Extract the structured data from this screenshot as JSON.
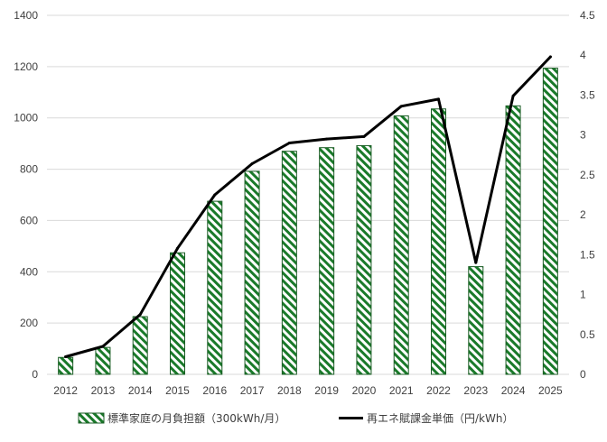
{
  "chart_data": {
    "type": "bar-line-combo",
    "categories": [
      "2012",
      "2013",
      "2014",
      "2015",
      "2016",
      "2017",
      "2018",
      "2019",
      "2020",
      "2021",
      "2022",
      "2023",
      "2024",
      "2025"
    ],
    "series": [
      {
        "name": "標準家庭の月負担額（300kWh/月）",
        "type": "bar",
        "axis": "left",
        "values": [
          66,
          105,
          225,
          474,
          675,
          792,
          870,
          884,
          892,
          1008,
          1035,
          420,
          1047,
          1194
        ]
      },
      {
        "name": "再エネ賦課金単価（円/kWh）",
        "type": "line",
        "axis": "right",
        "values": [
          0.22,
          0.35,
          0.75,
          1.58,
          2.25,
          2.64,
          2.9,
          2.95,
          2.98,
          3.36,
          3.45,
          1.4,
          3.49,
          3.98
        ]
      }
    ],
    "y_left": {
      "min": 0,
      "max": 1400,
      "ticks": [
        "0",
        "200",
        "400",
        "600",
        "800",
        "1000",
        "1200",
        "1400"
      ]
    },
    "y_right": {
      "min": 0,
      "max": 4.5,
      "ticks": [
        "0",
        "0.5",
        "1",
        "1.5",
        "2",
        "2.5",
        "3",
        "3.5",
        "4",
        "4.5"
      ]
    },
    "grid": true,
    "legend_position": "bottom",
    "colors": {
      "bar_stripe": "#1a7a2a",
      "bar_border": "#1a5c24",
      "line": "#000000",
      "grid": "#d9d9d9",
      "text": "#404040"
    }
  }
}
